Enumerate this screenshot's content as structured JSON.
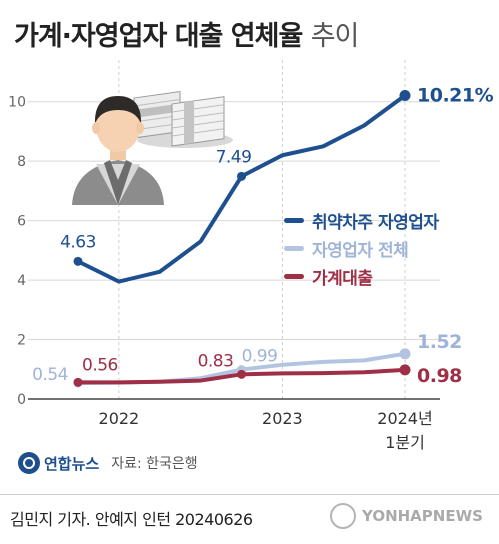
{
  "title": {
    "main": "가계·자영업자 대출 연체율",
    "sub": "추이"
  },
  "icons": {
    "person": "person-icon",
    "money": "money-stack-icon",
    "logo": "yonhap-logo-icon"
  },
  "colors": {
    "vulnerable": "#1e4f8f",
    "selfemployed": "#b3c4e1",
    "household": "#9e2f46"
  },
  "chart_data": {
    "type": "line",
    "title": "가계·자영업자 대출 연체율 추이",
    "x": [
      "2022 Q1",
      "2022 Q2",
      "2022 Q3",
      "2022 Q4",
      "2023 Q1",
      "2023 Q2",
      "2023 Q3",
      "2023 Q4",
      "2024 Q1"
    ],
    "xticklabels": [
      {
        "index": 1,
        "lines": [
          "2022"
        ]
      },
      {
        "index": 5,
        "lines": [
          "2023"
        ]
      },
      {
        "index": 8,
        "lines": [
          "2024년",
          "1분기"
        ]
      }
    ],
    "yticks": [
      0,
      2,
      4,
      6,
      8,
      10
    ],
    "ylim": [
      0,
      11
    ],
    "grid": true,
    "legend_position": "right",
    "series": [
      {
        "name": "취약차주 자영업자",
        "color": "#1e4f8f",
        "values": [
          4.63,
          3.95,
          4.28,
          5.3,
          7.49,
          8.2,
          8.5,
          9.2,
          10.21
        ]
      },
      {
        "name": "자영업자 전체",
        "color": "#b3c4e1",
        "values": [
          0.54,
          0.55,
          0.58,
          0.7,
          0.99,
          1.15,
          1.25,
          1.3,
          1.52
        ]
      },
      {
        "name": "가계대출",
        "color": "#9e2f46",
        "values": [
          0.56,
          0.56,
          0.58,
          0.62,
          0.83,
          0.86,
          0.87,
          0.9,
          0.98
        ]
      }
    ],
    "labels": [
      {
        "series": 0,
        "index": 0,
        "text": "4.63"
      },
      {
        "series": 0,
        "index": 4,
        "text": "7.49"
      },
      {
        "series": 0,
        "index": 8,
        "text": "10.21%"
      },
      {
        "series": 1,
        "index": 0,
        "text": "0.54"
      },
      {
        "series": 1,
        "index": 4,
        "text": "0.99"
      },
      {
        "series": 1,
        "index": 8,
        "text": "1.52"
      },
      {
        "series": 2,
        "index": 0,
        "text": "0.56"
      },
      {
        "series": 2,
        "index": 4,
        "text": "0.83"
      },
      {
        "series": 2,
        "index": 8,
        "text": "0.98"
      }
    ]
  },
  "footer": {
    "logo_text": "연합뉴스",
    "source": "자료: 한국은행",
    "credit": "김민지 기자. 안예지 인턴  20240626",
    "watermark": "YONHAPNEWS"
  }
}
